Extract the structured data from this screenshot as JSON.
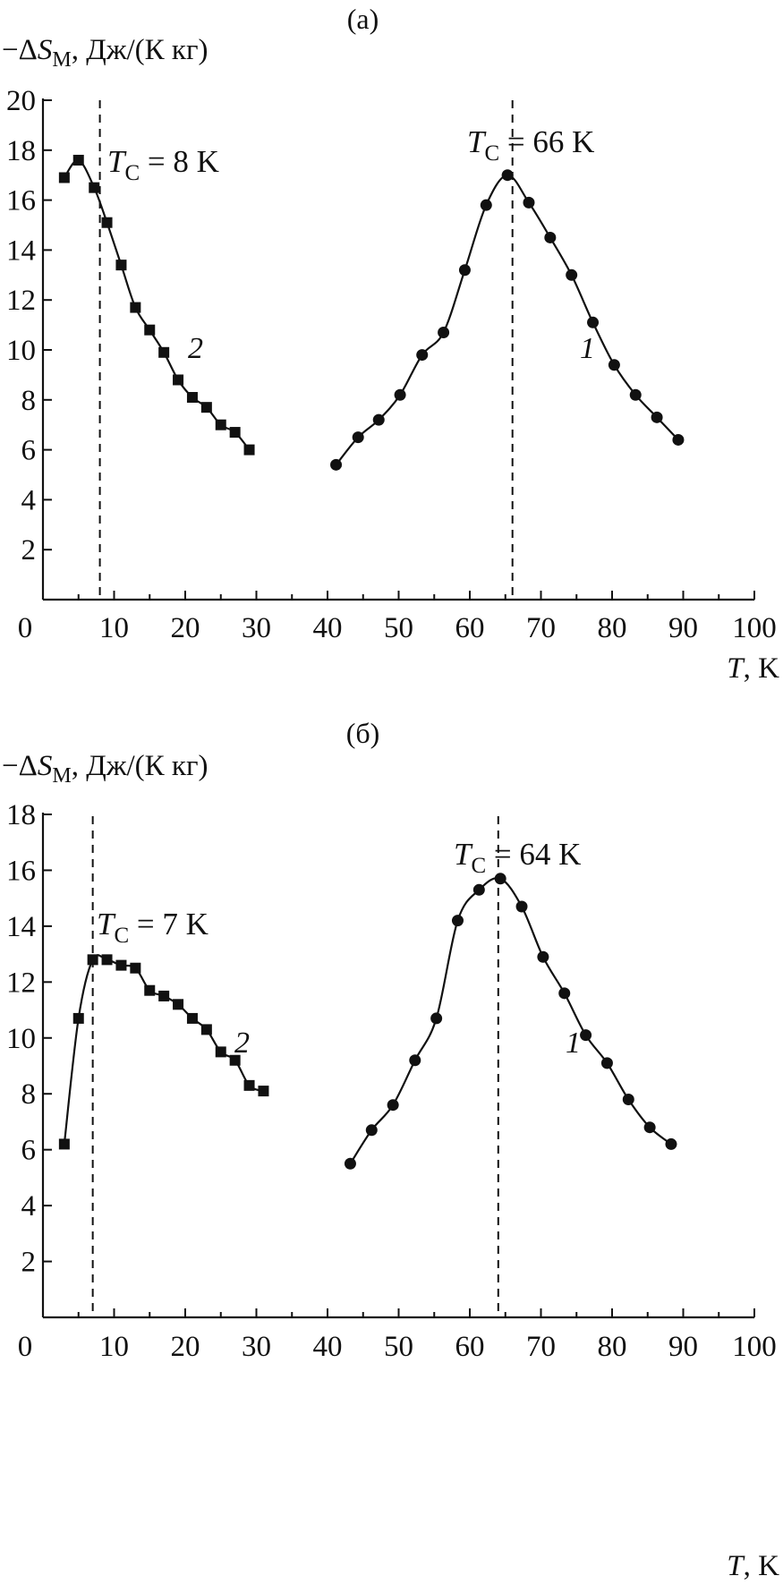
{
  "chart_data": [
    {
      "type": "line",
      "panel_label": "(а)",
      "ylabel_prefix": "−Δ",
      "ylabel_symbol": "S",
      "ylabel_sub": "M",
      "ylabel_suffix": ", Дж/(К кг)",
      "xlabel_symbol": "T",
      "xlabel_suffix": ", K",
      "xlim": [
        0,
        100
      ],
      "ylim": [
        0,
        20
      ],
      "xticks": [
        0,
        10,
        20,
        30,
        40,
        50,
        60,
        70,
        80,
        90,
        100
      ],
      "yticks": [
        2,
        4,
        6,
        8,
        10,
        12,
        14,
        16,
        18,
        20
      ],
      "grid": false,
      "series": [
        {
          "name": "1",
          "marker": "circle",
          "x": [
            41.2,
            44.3,
            47.2,
            50.2,
            53.3,
            56.3,
            59.3,
            62.3,
            65.3,
            68.3,
            71.3,
            74.3,
            77.3,
            80.3,
            83.3,
            86.3,
            89.3
          ],
          "y": [
            5.4,
            6.5,
            7.2,
            8.2,
            9.8,
            10.7,
            13.2,
            15.8,
            17.0,
            15.9,
            14.5,
            13.0,
            11.1,
            9.4,
            8.2,
            7.3,
            6.4
          ]
        },
        {
          "name": "2",
          "marker": "square",
          "x": [
            3.0,
            5.0,
            7.2,
            9.0,
            11.0,
            13.0,
            15.0,
            17.0,
            19.0,
            21.0,
            23.0,
            25.0,
            27.0,
            29.0
          ],
          "y": [
            16.9,
            17.6,
            16.5,
            15.1,
            13.4,
            11.7,
            10.8,
            9.9,
            8.8,
            8.1,
            7.7,
            7.0,
            6.7,
            6.0
          ]
        }
      ],
      "annotations": [
        {
          "symbol": "T",
          "sub": "C",
          "text": " = 8 K",
          "vline_x": 8
        },
        {
          "symbol": "T",
          "sub": "C",
          "text": " = 66 K",
          "vline_x": 66
        }
      ]
    },
    {
      "type": "line",
      "panel_label": "(б)",
      "ylabel_prefix": "−Δ",
      "ylabel_symbol": "S",
      "ylabel_sub": "M",
      "ylabel_suffix": ", Дж/(К кг)",
      "xlabel_symbol": "T",
      "xlabel_suffix": ", K",
      "xlim": [
        0,
        100
      ],
      "ylim": [
        0,
        18
      ],
      "xticks": [
        0,
        10,
        20,
        30,
        40,
        50,
        60,
        70,
        80,
        90,
        100
      ],
      "yticks": [
        2,
        4,
        6,
        8,
        10,
        12,
        14,
        16,
        18
      ],
      "grid": false,
      "series": [
        {
          "name": "1",
          "marker": "circle",
          "x": [
            43.2,
            46.2,
            49.2,
            52.3,
            55.3,
            58.3,
            61.3,
            64.3,
            67.3,
            70.3,
            73.3,
            76.3,
            79.3,
            82.3,
            85.3,
            88.3
          ],
          "y": [
            5.5,
            6.7,
            7.6,
            9.2,
            10.7,
            14.2,
            15.3,
            15.7,
            14.7,
            12.9,
            11.6,
            10.1,
            9.1,
            7.8,
            6.8,
            6.2
          ]
        },
        {
          "name": "2",
          "marker": "square",
          "x": [
            3.0,
            5.0,
            7.0,
            9.0,
            11.0,
            13.0,
            15.0,
            17.0,
            19.0,
            21.0,
            23.0,
            25.0,
            27.0,
            29.0,
            31.0
          ],
          "y": [
            6.2,
            10.7,
            12.8,
            12.8,
            12.6,
            12.5,
            11.7,
            11.5,
            11.2,
            10.7,
            10.3,
            9.5,
            9.2,
            8.3,
            8.1
          ]
        }
      ],
      "annotations": [
        {
          "symbol": "T",
          "sub": "C",
          "text": " = 7 K",
          "vline_x": 7
        },
        {
          "symbol": "T",
          "sub": "C",
          "text": " = 64 K",
          "vline_x": 64
        }
      ]
    }
  ]
}
